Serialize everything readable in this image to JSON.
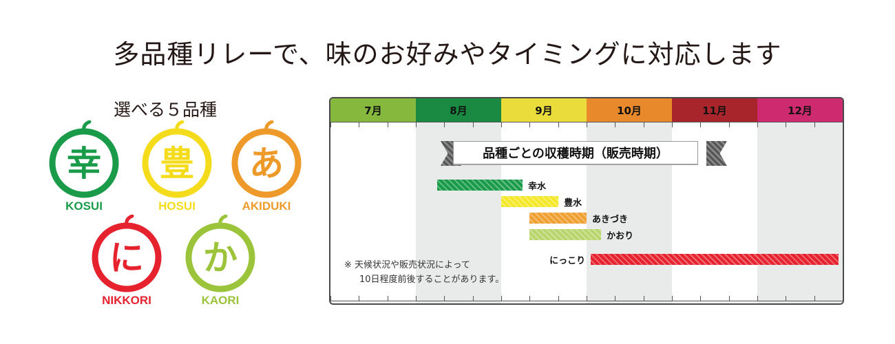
{
  "headline": "多品種リレーで、味のお好みやタイミングに対応します",
  "subtitle": "選べる５品種",
  "varieties": [
    {
      "kanji": "幸",
      "romaji": "KOSUI",
      "color": "#1a9b4a"
    },
    {
      "kanji": "豊",
      "romaji": "HOSUI",
      "color": "#f4dc1d"
    },
    {
      "kanji": "あ",
      "romaji": "AKIDUKI",
      "color": "#ee9a2a"
    },
    {
      "kanji": "に",
      "romaji": "NIKKORI",
      "color": "#e5222e"
    },
    {
      "kanji": "か",
      "romaji": "KAORI",
      "color": "#9cc43a"
    }
  ],
  "chart": {
    "title": "品種ごとの収穫時期（販売時期）",
    "months": [
      {
        "label": "7月",
        "color": "#86b83e"
      },
      {
        "label": "8月",
        "color": "#1a8a43"
      },
      {
        "label": "9月",
        "color": "#e9dc3b"
      },
      {
        "label": "10月",
        "color": "#e8892c"
      },
      {
        "label": "11月",
        "color": "#a7252b"
      },
      {
        "label": "12月",
        "color": "#cd2a70"
      }
    ],
    "note": [
      "※ 天候状況や販売状況によって",
      "10日程度前後することがあります。"
    ]
  },
  "chart_data": {
    "type": "gantt",
    "title": "品種ごとの収穫時期（販売時期）",
    "categories": [
      "7月",
      "8月",
      "9月",
      "10月",
      "11月",
      "12月"
    ],
    "series": [
      {
        "name": "幸水",
        "start": 1.25,
        "end": 2.25,
        "color": "#1a9b4a"
      },
      {
        "name": "豊水",
        "start": 2.0,
        "end": 2.67,
        "color": "#f5e82a"
      },
      {
        "name": "あきづき",
        "start": 2.33,
        "end": 3.0,
        "color": "#f0a030"
      },
      {
        "name": "かおり",
        "start": 2.33,
        "end": 3.17,
        "color": "#b8d66b"
      },
      {
        "name": "にっこり",
        "start": 3.05,
        "end": 5.95,
        "color": "#e5222e"
      }
    ]
  }
}
